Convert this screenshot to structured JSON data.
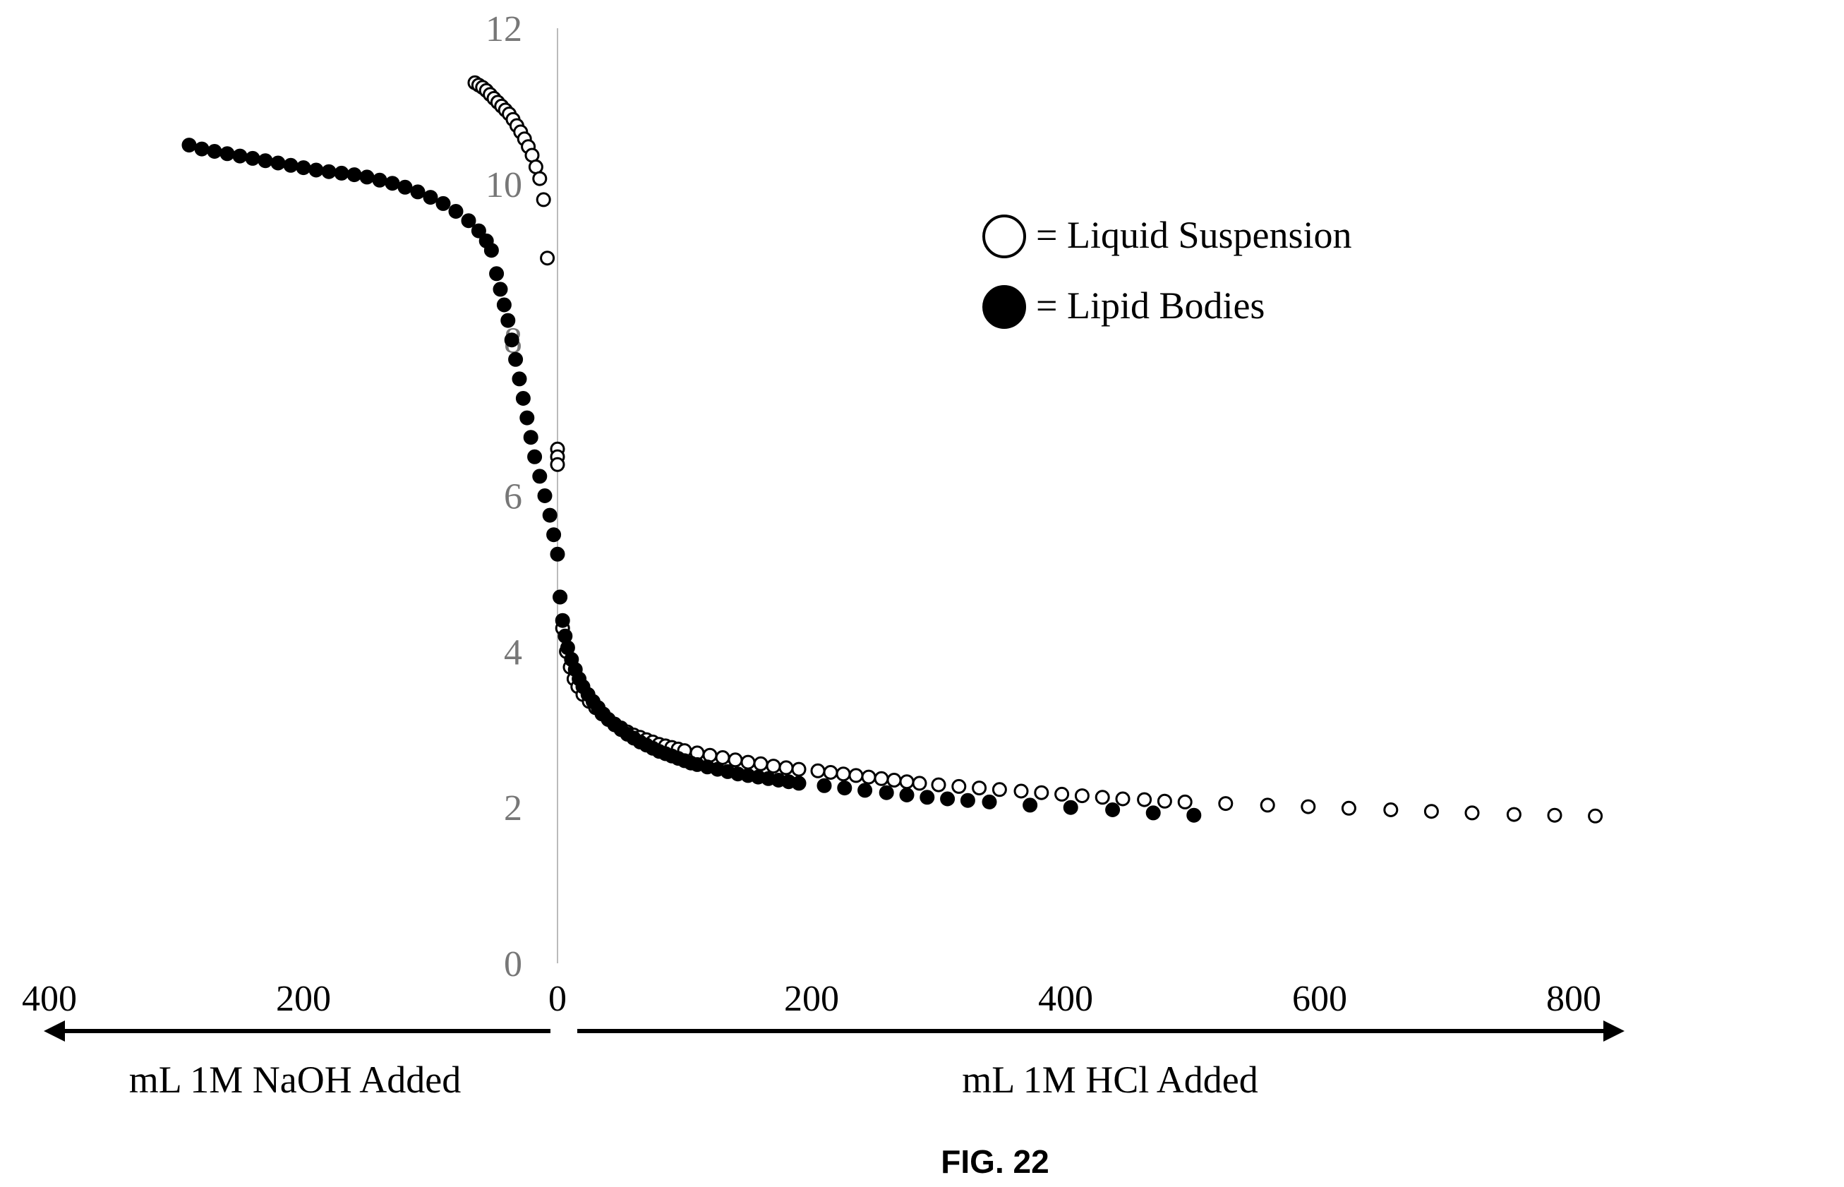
{
  "chart_data": {
    "type": "scatter",
    "title": "",
    "y_axis": {
      "range": [
        0,
        12
      ],
      "ticks": [
        0,
        2,
        4,
        6,
        8,
        10,
        12
      ],
      "label": ""
    },
    "x_axis_left": {
      "label": "mL 1M NaOH Added",
      "ticks": [
        "400",
        "200",
        "0"
      ],
      "range": [
        0,
        400
      ],
      "direction": "leftward"
    },
    "x_axis_right": {
      "label": "mL 1M HCl Added",
      "ticks": [
        "200",
        "400",
        "600",
        "800"
      ],
      "range": [
        0,
        840
      ],
      "direction": "rightward"
    },
    "grid": "none",
    "legend_placement": "upper-center",
    "series": [
      {
        "name": "= Liquid Suspension",
        "marker": "open-circle",
        "color": "#000000",
        "side_naoh": [
          {
            "x": 65,
            "y": 11.3
          },
          {
            "x": 62,
            "y": 11.27
          },
          {
            "x": 59,
            "y": 11.24
          },
          {
            "x": 56,
            "y": 11.2
          },
          {
            "x": 53,
            "y": 11.15
          },
          {
            "x": 50,
            "y": 11.1
          },
          {
            "x": 47,
            "y": 11.05
          },
          {
            "x": 44,
            "y": 11.0
          },
          {
            "x": 41,
            "y": 10.95
          },
          {
            "x": 38,
            "y": 10.9
          },
          {
            "x": 35,
            "y": 10.83
          },
          {
            "x": 32,
            "y": 10.75
          },
          {
            "x": 29,
            "y": 10.67
          },
          {
            "x": 26,
            "y": 10.58
          },
          {
            "x": 23,
            "y": 10.48
          },
          {
            "x": 20,
            "y": 10.37
          },
          {
            "x": 17,
            "y": 10.22
          },
          {
            "x": 14,
            "y": 10.07
          },
          {
            "x": 11,
            "y": 9.8
          },
          {
            "x": 8,
            "y": 9.05
          }
        ],
        "side_hcl": [
          {
            "x": 0,
            "y": 6.6
          },
          {
            "x": 0,
            "y": 6.5
          },
          {
            "x": 0,
            "y": 6.4
          },
          {
            "x": 2,
            "y": 4.7
          },
          {
            "x": 4,
            "y": 4.3
          },
          {
            "x": 7,
            "y": 4.0
          },
          {
            "x": 10,
            "y": 3.8
          },
          {
            "x": 13,
            "y": 3.65
          },
          {
            "x": 16,
            "y": 3.55
          },
          {
            "x": 20,
            "y": 3.45
          },
          {
            "x": 25,
            "y": 3.36
          },
          {
            "x": 30,
            "y": 3.28
          },
          {
            "x": 35,
            "y": 3.2
          },
          {
            "x": 40,
            "y": 3.13
          },
          {
            "x": 45,
            "y": 3.07
          },
          {
            "x": 50,
            "y": 3.02
          },
          {
            "x": 55,
            "y": 2.97
          },
          {
            "x": 60,
            "y": 2.93
          },
          {
            "x": 65,
            "y": 2.9
          },
          {
            "x": 70,
            "y": 2.87
          },
          {
            "x": 75,
            "y": 2.84
          },
          {
            "x": 80,
            "y": 2.81
          },
          {
            "x": 85,
            "y": 2.79
          },
          {
            "x": 90,
            "y": 2.77
          },
          {
            "x": 95,
            "y": 2.75
          },
          {
            "x": 100,
            "y": 2.73
          },
          {
            "x": 110,
            "y": 2.7
          },
          {
            "x": 120,
            "y": 2.67
          },
          {
            "x": 130,
            "y": 2.64
          },
          {
            "x": 140,
            "y": 2.61
          },
          {
            "x": 150,
            "y": 2.58
          },
          {
            "x": 160,
            "y": 2.56
          },
          {
            "x": 170,
            "y": 2.53
          },
          {
            "x": 180,
            "y": 2.51
          },
          {
            "x": 190,
            "y": 2.49
          },
          {
            "x": 205,
            "y": 2.47
          },
          {
            "x": 215,
            "y": 2.45
          },
          {
            "x": 225,
            "y": 2.43
          },
          {
            "x": 235,
            "y": 2.41
          },
          {
            "x": 245,
            "y": 2.39
          },
          {
            "x": 255,
            "y": 2.37
          },
          {
            "x": 265,
            "y": 2.35
          },
          {
            "x": 275,
            "y": 2.33
          },
          {
            "x": 285,
            "y": 2.31
          },
          {
            "x": 300,
            "y": 2.29
          },
          {
            "x": 316,
            "y": 2.27
          },
          {
            "x": 332,
            "y": 2.25
          },
          {
            "x": 348,
            "y": 2.23
          },
          {
            "x": 365,
            "y": 2.21
          },
          {
            "x": 381,
            "y": 2.19
          },
          {
            "x": 397,
            "y": 2.17
          },
          {
            "x": 413,
            "y": 2.15
          },
          {
            "x": 429,
            "y": 2.13
          },
          {
            "x": 445,
            "y": 2.11
          },
          {
            "x": 462,
            "y": 2.1
          },
          {
            "x": 478,
            "y": 2.08
          },
          {
            "x": 494,
            "y": 2.07
          },
          {
            "x": 526,
            "y": 2.05
          },
          {
            "x": 559,
            "y": 2.03
          },
          {
            "x": 591,
            "y": 2.01
          },
          {
            "x": 623,
            "y": 1.99
          },
          {
            "x": 656,
            "y": 1.97
          },
          {
            "x": 688,
            "y": 1.95
          },
          {
            "x": 720,
            "y": 1.93
          },
          {
            "x": 753,
            "y": 1.91
          },
          {
            "x": 785,
            "y": 1.9
          },
          {
            "x": 817,
            "y": 1.89
          }
        ]
      },
      {
        "name": "= Lipid Bodies",
        "marker": "filled-circle",
        "color": "#000000",
        "side_naoh": [
          {
            "x": 290,
            "y": 10.5
          },
          {
            "x": 280,
            "y": 10.45
          },
          {
            "x": 270,
            "y": 10.42
          },
          {
            "x": 260,
            "y": 10.39
          },
          {
            "x": 250,
            "y": 10.36
          },
          {
            "x": 240,
            "y": 10.33
          },
          {
            "x": 230,
            "y": 10.3
          },
          {
            "x": 220,
            "y": 10.27
          },
          {
            "x": 210,
            "y": 10.24
          },
          {
            "x": 200,
            "y": 10.21
          },
          {
            "x": 190,
            "y": 10.18
          },
          {
            "x": 180,
            "y": 10.16
          },
          {
            "x": 170,
            "y": 10.14
          },
          {
            "x": 160,
            "y": 10.12
          },
          {
            "x": 150,
            "y": 10.09
          },
          {
            "x": 140,
            "y": 10.05
          },
          {
            "x": 130,
            "y": 10.01
          },
          {
            "x": 120,
            "y": 9.96
          },
          {
            "x": 110,
            "y": 9.9
          },
          {
            "x": 100,
            "y": 9.83
          },
          {
            "x": 90,
            "y": 9.75
          },
          {
            "x": 80,
            "y": 9.65
          },
          {
            "x": 70,
            "y": 9.53
          },
          {
            "x": 62,
            "y": 9.4
          },
          {
            "x": 56,
            "y": 9.27
          },
          {
            "x": 52,
            "y": 9.15
          },
          {
            "x": 48,
            "y": 8.85
          },
          {
            "x": 45,
            "y": 8.65
          },
          {
            "x": 42,
            "y": 8.45
          },
          {
            "x": 39,
            "y": 8.25
          },
          {
            "x": 36,
            "y": 8.0
          },
          {
            "x": 33,
            "y": 7.75
          },
          {
            "x": 30,
            "y": 7.5
          },
          {
            "x": 27,
            "y": 7.25
          },
          {
            "x": 24,
            "y": 7.0
          },
          {
            "x": 21,
            "y": 6.75
          },
          {
            "x": 18,
            "y": 6.5
          },
          {
            "x": 14,
            "y": 6.25
          },
          {
            "x": 10,
            "y": 6.0
          },
          {
            "x": 6,
            "y": 5.75
          },
          {
            "x": 3,
            "y": 5.5
          }
        ],
        "side_hcl": [
          {
            "x": 0,
            "y": 5.25
          },
          {
            "x": 2,
            "y": 4.7
          },
          {
            "x": 4,
            "y": 4.4
          },
          {
            "x": 6,
            "y": 4.2
          },
          {
            "x": 8,
            "y": 4.05
          },
          {
            "x": 11,
            "y": 3.9
          },
          {
            "x": 14,
            "y": 3.77
          },
          {
            "x": 17,
            "y": 3.65
          },
          {
            "x": 20,
            "y": 3.55
          },
          {
            "x": 24,
            "y": 3.45
          },
          {
            "x": 28,
            "y": 3.36
          },
          {
            "x": 32,
            "y": 3.28
          },
          {
            "x": 36,
            "y": 3.2
          },
          {
            "x": 40,
            "y": 3.13
          },
          {
            "x": 45,
            "y": 3.06
          },
          {
            "x": 50,
            "y": 3.0
          },
          {
            "x": 55,
            "y": 2.94
          },
          {
            "x": 60,
            "y": 2.89
          },
          {
            "x": 65,
            "y": 2.84
          },
          {
            "x": 70,
            "y": 2.8
          },
          {
            "x": 75,
            "y": 2.76
          },
          {
            "x": 80,
            "y": 2.72
          },
          {
            "x": 85,
            "y": 2.69
          },
          {
            "x": 90,
            "y": 2.66
          },
          {
            "x": 95,
            "y": 2.63
          },
          {
            "x": 100,
            "y": 2.6
          },
          {
            "x": 105,
            "y": 2.57
          },
          {
            "x": 110,
            "y": 2.55
          },
          {
            "x": 118,
            "y": 2.52
          },
          {
            "x": 126,
            "y": 2.49
          },
          {
            "x": 134,
            "y": 2.46
          },
          {
            "x": 142,
            "y": 2.43
          },
          {
            "x": 150,
            "y": 2.41
          },
          {
            "x": 158,
            "y": 2.39
          },
          {
            "x": 166,
            "y": 2.37
          },
          {
            "x": 174,
            "y": 2.35
          },
          {
            "x": 182,
            "y": 2.33
          },
          {
            "x": 190,
            "y": 2.31
          },
          {
            "x": 210,
            "y": 2.28
          },
          {
            "x": 226,
            "y": 2.25
          },
          {
            "x": 242,
            "y": 2.22
          },
          {
            "x": 259,
            "y": 2.19
          },
          {
            "x": 275,
            "y": 2.16
          },
          {
            "x": 291,
            "y": 2.13
          },
          {
            "x": 307,
            "y": 2.11
          },
          {
            "x": 323,
            "y": 2.09
          },
          {
            "x": 340,
            "y": 2.07
          },
          {
            "x": 372,
            "y": 2.03
          },
          {
            "x": 404,
            "y": 2.0
          },
          {
            "x": 437,
            "y": 1.97
          },
          {
            "x": 469,
            "y": 1.93
          },
          {
            "x": 501,
            "y": 1.9
          }
        ]
      }
    ]
  },
  "figure_label": "FIG. 22"
}
